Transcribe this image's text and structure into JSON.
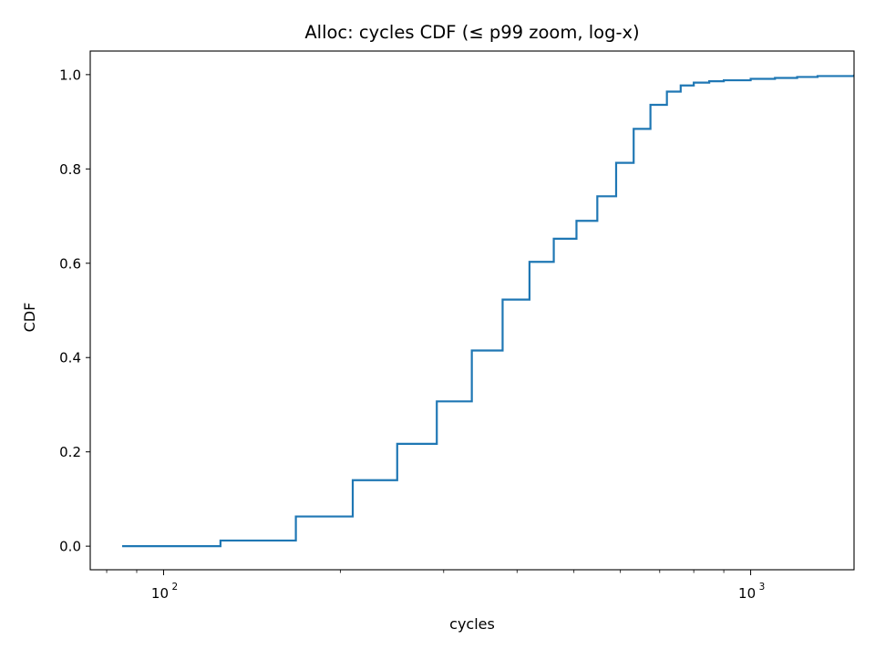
{
  "chart_data": {
    "type": "line",
    "title": "Alloc: cycles CDF (≤ p99 zoom, log-x)",
    "xlabel": "cycles",
    "ylabel": "CDF",
    "x_scale": "log",
    "xlim": [
      75,
      1500
    ],
    "ylim": [
      -0.05,
      1.05
    ],
    "x_major_ticks": [
      {
        "value": 100,
        "base": "10",
        "exp": "2"
      },
      {
        "value": 1000,
        "base": "10",
        "exp": "3"
      }
    ],
    "x_minor_ticks": [
      80,
      90,
      200,
      300,
      400,
      500,
      600,
      700,
      800,
      900
    ],
    "y_ticks": [
      {
        "value": 0.0,
        "label": "0.0"
      },
      {
        "value": 0.2,
        "label": "0.2"
      },
      {
        "value": 0.4,
        "label": "0.4"
      },
      {
        "value": 0.6,
        "label": "0.6"
      },
      {
        "value": 0.8,
        "label": "0.8"
      },
      {
        "value": 1.0,
        "label": "1.0"
      }
    ],
    "grid": false,
    "legend": "none",
    "series": [
      {
        "color": "#1f77b4",
        "drawstyle": "steps-post",
        "x": [
          85,
          125,
          168,
          210,
          250,
          292,
          335,
          378,
          420,
          462,
          505,
          548,
          590,
          632,
          675,
          720,
          760,
          800,
          850,
          900,
          1000,
          1100,
          1200,
          1300,
          1500
        ],
        "y": [
          0.0,
          0.012,
          0.063,
          0.14,
          0.217,
          0.307,
          0.415,
          0.523,
          0.603,
          0.652,
          0.69,
          0.742,
          0.813,
          0.885,
          0.936,
          0.964,
          0.977,
          0.983,
          0.986,
          0.988,
          0.991,
          0.993,
          0.995,
          0.997,
          1.0
        ]
      }
    ]
  }
}
